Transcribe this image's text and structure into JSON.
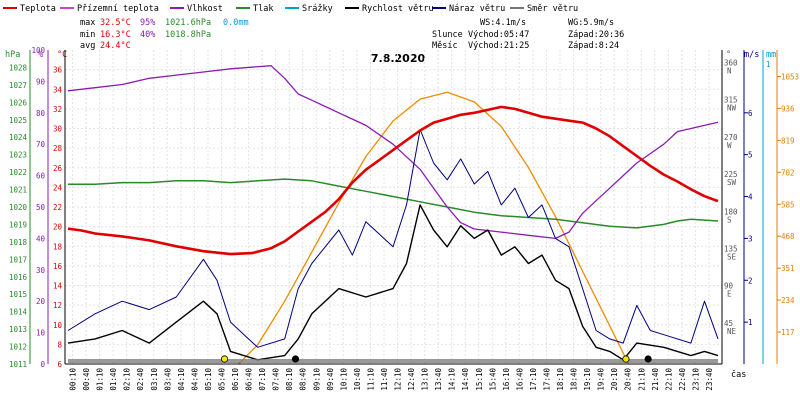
{
  "chart_data": {
    "type": "line",
    "title": "7.8.2020",
    "xlabel": "čas",
    "legend": [
      {
        "label": "Teplota",
        "color": "#e00000"
      },
      {
        "label": "Přízemní teplota",
        "color": "#cc44cc"
      },
      {
        "label": "Vlhkost",
        "color": "#8a1cb3"
      },
      {
        "label": "Tlak",
        "color": "#2a8a2a"
      },
      {
        "label": "Srážky",
        "color": "#00a0d0"
      },
      {
        "label": "Rychlost větru",
        "color": "#000000"
      },
      {
        "label": "Náraz větru",
        "color": "#000080"
      },
      {
        "label": "Směr větru",
        "color": "#777777"
      }
    ],
    "stats": {
      "max": {
        "label": "max",
        "temp": "32.5°C",
        "hum": "95%",
        "press": "1021.6hPa",
        "rain": "0.0mm"
      },
      "min": {
        "label": "min",
        "temp": "16.3°C",
        "hum": "40%",
        "press": "1018.8hPa"
      },
      "avg": {
        "label": "avg",
        "temp": "24.4°C"
      }
    },
    "info": {
      "ws": "WS:4.1m/s",
      "wg": "WG:5.9m/s",
      "sun_label": "Slunce",
      "sunrise": "Východ:05:47",
      "sunset": "Západ:20:36",
      "moon_label": "Měsíc",
      "moonrise": "Východ:21:25",
      "moonset": "Západ:8:24"
    },
    "axes": {
      "pressure": {
        "unit": "hPa",
        "range": [
          1011,
          1029
        ],
        "ticks": [
          1011,
          1012,
          1013,
          1014,
          1015,
          1016,
          1017,
          1018,
          1019,
          1020,
          1021,
          1022,
          1023,
          1024,
          1025,
          1026,
          1027,
          1028
        ]
      },
      "humidity": {
        "unit": "%",
        "range": [
          0,
          100
        ],
        "ticks": [
          0,
          10,
          20,
          30,
          40,
          50,
          60,
          70,
          80,
          90,
          100
        ]
      },
      "temperature": {
        "unit": "°C",
        "range": [
          6,
          38
        ],
        "ticks": [
          6,
          8,
          10,
          12,
          14,
          16,
          18,
          20,
          22,
          24,
          26,
          28,
          30,
          32,
          34,
          36
        ]
      },
      "wind_dir": {
        "unit": "°",
        "range": [
          0,
          380
        ],
        "ticks": [
          {
            "v": 360,
            "l": "N"
          },
          {
            "v": 315,
            "l": "NW"
          },
          {
            "v": 270,
            "l": "W"
          },
          {
            "v": 225,
            "l": "SW"
          },
          {
            "v": 180,
            "l": "S"
          },
          {
            "v": 135,
            "l": "SE"
          },
          {
            "v": 90,
            "l": "E"
          },
          {
            "v": 45,
            "l": "NE"
          }
        ]
      },
      "wind_speed": {
        "unit": "m/s",
        "range": [
          0,
          7.5
        ],
        "ticks": [
          1,
          2,
          3,
          4,
          5,
          6
        ]
      },
      "rain": {
        "unit": "mm",
        "ticks": [
          1
        ]
      },
      "solar": {
        "range": [
          0,
          1150
        ],
        "ticks": [
          117,
          234,
          351,
          468,
          585,
          702,
          819,
          936,
          1053
        ]
      }
    },
    "x_ticks": [
      "00:10",
      "00:40",
      "01:10",
      "01:40",
      "02:10",
      "02:40",
      "03:10",
      "03:40",
      "04:10",
      "04:40",
      "05:10",
      "05:40",
      "06:10",
      "06:40",
      "07:10",
      "07:40",
      "08:10",
      "08:40",
      "09:10",
      "09:40",
      "10:10",
      "10:40",
      "11:10",
      "11:40",
      "12:10",
      "12:40",
      "13:10",
      "13:40",
      "14:10",
      "14:40",
      "15:10",
      "15:40",
      "16:10",
      "16:40",
      "17:10",
      "17:40",
      "18:10",
      "18:40",
      "19:10",
      "19:40",
      "20:10",
      "20:40",
      "21:10",
      "21:40",
      "22:10",
      "22:40",
      "23:10",
      "23:40"
    ],
    "series": {
      "temperature": [
        [
          0,
          19.8
        ],
        [
          0.5,
          19.6
        ],
        [
          1,
          19.3
        ],
        [
          2,
          19.0
        ],
        [
          3,
          18.6
        ],
        [
          4,
          18.0
        ],
        [
          5,
          17.5
        ],
        [
          6,
          17.2
        ],
        [
          6.8,
          17.3
        ],
        [
          7.5,
          17.8
        ],
        [
          8,
          18.5
        ],
        [
          8.5,
          19.5
        ],
        [
          9,
          20.5
        ],
        [
          9.5,
          21.5
        ],
        [
          10,
          22.8
        ],
        [
          10.5,
          24.5
        ],
        [
          11,
          25.8
        ],
        [
          11.5,
          26.8
        ],
        [
          12,
          27.8
        ],
        [
          12.5,
          28.8
        ],
        [
          13,
          29.8
        ],
        [
          13.5,
          30.6
        ],
        [
          14,
          31.0
        ],
        [
          14.5,
          31.4
        ],
        [
          15,
          31.6
        ],
        [
          15.5,
          31.9
        ],
        [
          16,
          32.2
        ],
        [
          16.5,
          32.0
        ],
        [
          17,
          31.6
        ],
        [
          17.5,
          31.2
        ],
        [
          18,
          31.0
        ],
        [
          18.5,
          30.8
        ],
        [
          19,
          30.6
        ],
        [
          19.5,
          30.0
        ],
        [
          20,
          29.2
        ],
        [
          20.5,
          28.2
        ],
        [
          21,
          27.2
        ],
        [
          21.5,
          26.2
        ],
        [
          22,
          25.3
        ],
        [
          22.5,
          24.6
        ],
        [
          23,
          23.8
        ],
        [
          23.5,
          23.1
        ],
        [
          24,
          22.6
        ]
      ],
      "humidity": [
        [
          0,
          87
        ],
        [
          1,
          88
        ],
        [
          2,
          89
        ],
        [
          3,
          91
        ],
        [
          4,
          92
        ],
        [
          5,
          93
        ],
        [
          6,
          94
        ],
        [
          7.5,
          95
        ],
        [
          8,
          91
        ],
        [
          8.5,
          86
        ],
        [
          9,
          84
        ],
        [
          9.5,
          82
        ],
        [
          10,
          80
        ],
        [
          10.5,
          78
        ],
        [
          11,
          76
        ],
        [
          11.5,
          73
        ],
        [
          12,
          70
        ],
        [
          12.5,
          66
        ],
        [
          13,
          62
        ],
        [
          13.5,
          56
        ],
        [
          14,
          50
        ],
        [
          14.5,
          45
        ],
        [
          15,
          43
        ],
        [
          16,
          42
        ],
        [
          17,
          41
        ],
        [
          18,
          40
        ],
        [
          18.5,
          42
        ],
        [
          19,
          48
        ],
        [
          19.5,
          52
        ],
        [
          20,
          56
        ],
        [
          20.5,
          60
        ],
        [
          21,
          64
        ],
        [
          21.5,
          67
        ],
        [
          22,
          70
        ],
        [
          22.5,
          74
        ],
        [
          23,
          75
        ],
        [
          23.5,
          76
        ],
        [
          24,
          77
        ]
      ],
      "pressure": [
        [
          0,
          1021.3
        ],
        [
          1,
          1021.3
        ],
        [
          2,
          1021.4
        ],
        [
          3,
          1021.4
        ],
        [
          4,
          1021.5
        ],
        [
          5,
          1021.5
        ],
        [
          6,
          1021.4
        ],
        [
          7,
          1021.5
        ],
        [
          8,
          1021.6
        ],
        [
          9,
          1021.5
        ],
        [
          10,
          1021.2
        ],
        [
          11,
          1020.9
        ],
        [
          12,
          1020.6
        ],
        [
          13,
          1020.3
        ],
        [
          14,
          1020.0
        ],
        [
          15,
          1019.7
        ],
        [
          16,
          1019.5
        ],
        [
          17,
          1019.4
        ],
        [
          18,
          1019.3
        ],
        [
          19,
          1019.1
        ],
        [
          20,
          1018.9
        ],
        [
          21,
          1018.8
        ],
        [
          22,
          1019.0
        ],
        [
          22.5,
          1019.2
        ],
        [
          23,
          1019.3
        ],
        [
          24,
          1019.2
        ]
      ],
      "solar": [
        [
          6.3,
          0
        ],
        [
          7,
          70
        ],
        [
          8,
          230
        ],
        [
          9,
          410
        ],
        [
          10,
          590
        ],
        [
          11,
          760
        ],
        [
          12,
          890
        ],
        [
          13,
          970
        ],
        [
          14,
          995
        ],
        [
          15,
          960
        ],
        [
          16,
          870
        ],
        [
          17,
          720
        ],
        [
          18,
          540
        ],
        [
          19,
          340
        ],
        [
          20,
          140
        ],
        [
          20.7,
          0
        ]
      ],
      "wind_speed": [
        [
          0,
          0.5
        ],
        [
          1,
          0.6
        ],
        [
          2,
          0.8
        ],
        [
          3,
          0.5
        ],
        [
          4,
          1.0
        ],
        [
          5,
          1.5
        ],
        [
          5.5,
          1.2
        ],
        [
          6,
          0.3
        ],
        [
          7,
          0.1
        ],
        [
          8,
          0.2
        ],
        [
          8.5,
          0.6
        ],
        [
          9,
          1.2
        ],
        [
          10,
          1.8
        ],
        [
          11,
          1.6
        ],
        [
          12,
          1.8
        ],
        [
          12.5,
          2.4
        ],
        [
          13,
          3.8
        ],
        [
          13.5,
          3.2
        ],
        [
          14,
          2.8
        ],
        [
          14.5,
          3.3
        ],
        [
          15,
          3.0
        ],
        [
          15.5,
          3.2
        ],
        [
          16,
          2.6
        ],
        [
          16.5,
          2.8
        ],
        [
          17,
          2.4
        ],
        [
          17.5,
          2.6
        ],
        [
          18,
          2.0
        ],
        [
          18.5,
          1.8
        ],
        [
          19,
          0.9
        ],
        [
          19.5,
          0.4
        ],
        [
          20,
          0.3
        ],
        [
          20.5,
          0.1
        ],
        [
          21,
          0.5
        ],
        [
          22,
          0.4
        ],
        [
          23,
          0.2
        ],
        [
          23.5,
          0.3
        ],
        [
          24,
          0.2
        ]
      ],
      "wind_gust": [
        [
          0,
          0.8
        ],
        [
          1,
          1.2
        ],
        [
          2,
          1.5
        ],
        [
          3,
          1.3
        ],
        [
          4,
          1.6
        ],
        [
          5,
          2.5
        ],
        [
          5.5,
          2.0
        ],
        [
          6,
          1.0
        ],
        [
          7,
          0.4
        ],
        [
          8,
          0.6
        ],
        [
          8.5,
          1.8
        ],
        [
          9,
          2.4
        ],
        [
          10,
          3.2
        ],
        [
          10.5,
          2.6
        ],
        [
          11,
          3.4
        ],
        [
          12,
          2.8
        ],
        [
          12.5,
          3.8
        ],
        [
          13,
          5.6
        ],
        [
          13.5,
          4.8
        ],
        [
          14,
          4.4
        ],
        [
          14.5,
          4.9
        ],
        [
          15,
          4.3
        ],
        [
          15.5,
          4.6
        ],
        [
          16,
          3.8
        ],
        [
          16.5,
          4.2
        ],
        [
          17,
          3.5
        ],
        [
          17.5,
          3.8
        ],
        [
          18,
          3.0
        ],
        [
          18.5,
          2.8
        ],
        [
          19,
          1.8
        ],
        [
          19.5,
          0.8
        ],
        [
          20,
          0.6
        ],
        [
          20.5,
          0.5
        ],
        [
          21,
          1.4
        ],
        [
          21.5,
          0.8
        ],
        [
          22,
          0.7
        ],
        [
          23,
          0.5
        ],
        [
          23.5,
          1.5
        ],
        [
          24,
          0.6
        ]
      ]
    }
  }
}
